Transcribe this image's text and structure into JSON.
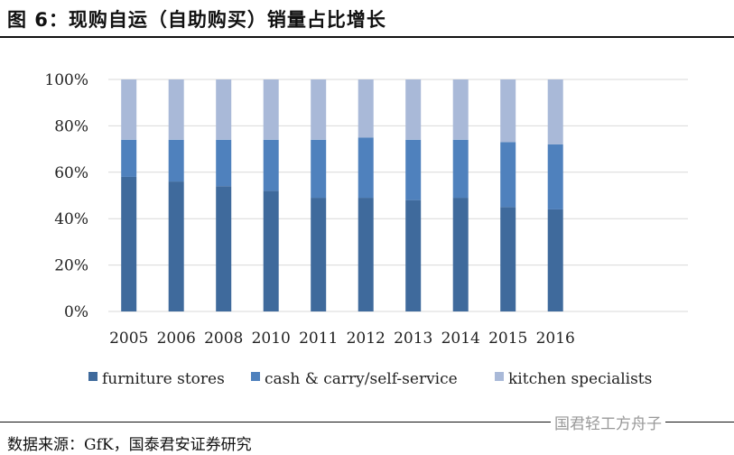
{
  "title": "图 6：现购自运（自助购买）销量占比增长",
  "source": "数据来源：GfK，国泰君安证券研究",
  "watermark": "国君轻工方舟子",
  "chart_data": {
    "type": "bar",
    "stacked": true,
    "categories": [
      "2005",
      "2006",
      "2008",
      "2010",
      "2011",
      "2012",
      "2013",
      "2014",
      "2015",
      "2016"
    ],
    "series": [
      {
        "name": "furniture stores",
        "color": "#3f6a9c",
        "values": [
          58,
          56,
          54,
          52,
          49,
          49,
          48,
          49,
          45,
          44
        ]
      },
      {
        "name": "cash & carry/self-service",
        "color": "#4f81bd",
        "values": [
          16,
          18,
          20,
          22,
          25,
          26,
          26,
          25,
          28,
          28
        ]
      },
      {
        "name": "kitchen specialists",
        "color": "#a9b9d8",
        "values": [
          26,
          26,
          26,
          26,
          26,
          25,
          26,
          26,
          27,
          28
        ]
      }
    ],
    "yticks": [
      "0%",
      "20%",
      "40%",
      "60%",
      "80%",
      "100%"
    ],
    "ylim": [
      0,
      100
    ],
    "grid": true,
    "legend": "bottom"
  }
}
